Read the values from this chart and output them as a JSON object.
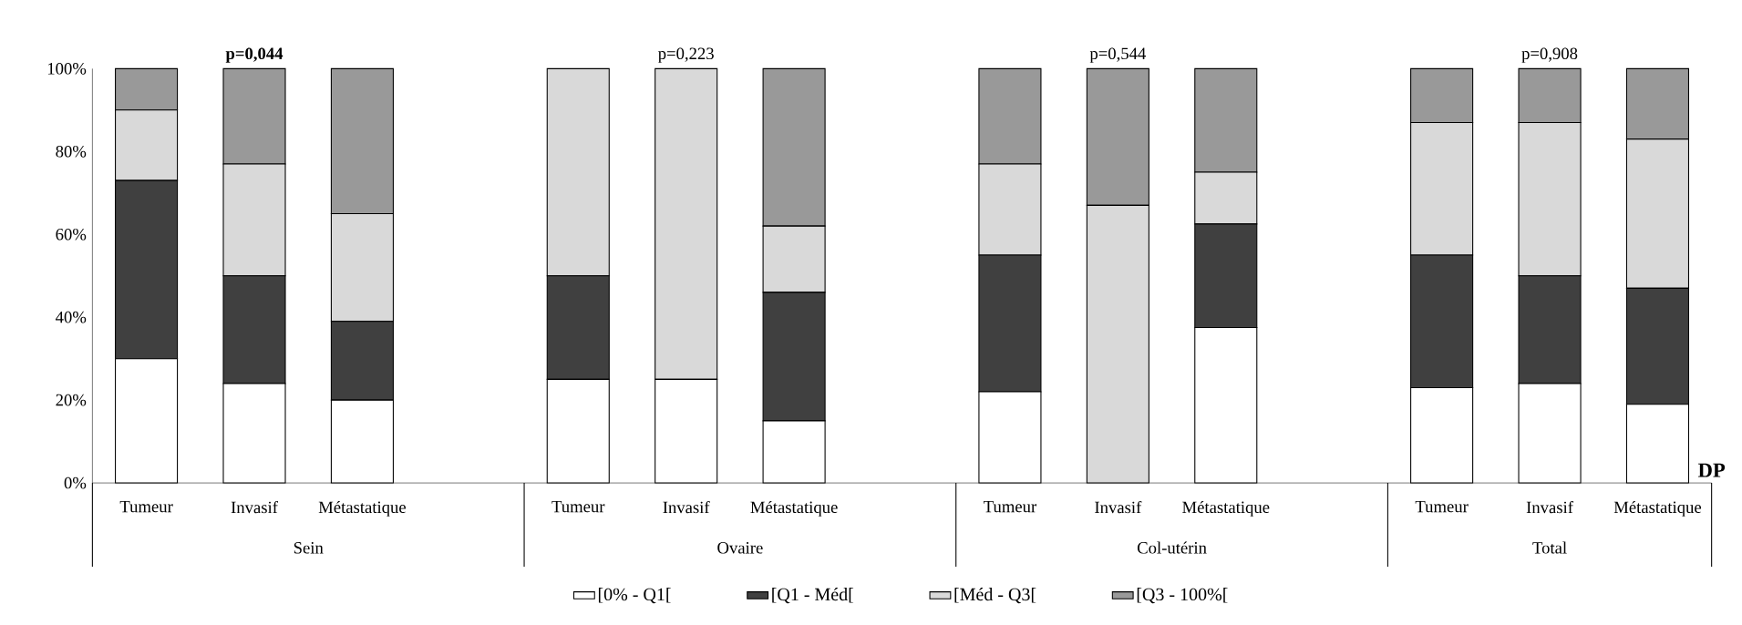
{
  "chart_data": {
    "type": "bar",
    "stacked": true,
    "categories": [
      "Tumeur",
      "Invasif",
      "Métastatique",
      null,
      "Tumeur",
      "Invasif",
      "Métastatique",
      null,
      "Tumeur",
      "Invasif",
      "Métastatique",
      null,
      "Tumeur",
      "Invasif",
      "Métastatique"
    ],
    "series": [
      {
        "name": "[0% - Q1[",
        "color": "#ffffff",
        "values": [
          30,
          24,
          20,
          null,
          25,
          25,
          15,
          null,
          22,
          0,
          37.5,
          null,
          23,
          24,
          19
        ]
      },
      {
        "name": "[Q1 - Méd[",
        "color": "#404040",
        "values": [
          43,
          26,
          19,
          null,
          25,
          0,
          31,
          null,
          33,
          0,
          25,
          null,
          32,
          26,
          28
        ]
      },
      {
        "name": "[Méd - Q3[",
        "color": "#d9d9d9",
        "values": [
          17,
          27,
          26,
          null,
          50,
          75,
          16,
          null,
          22,
          67,
          12.5,
          null,
          32,
          37,
          36
        ]
      },
      {
        "name": "[Q3 - 100%[",
        "color": "#999999",
        "values": [
          10,
          23,
          35,
          null,
          0,
          0,
          38,
          null,
          23,
          33,
          25,
          null,
          13,
          13,
          17
        ]
      }
    ],
    "ylim": [
      0,
      100
    ],
    "yticks": [
      {
        "value": 0,
        "label": "0%"
      },
      {
        "value": 20,
        "label": "20%"
      },
      {
        "value": 40,
        "label": "40%"
      },
      {
        "value": 60,
        "label": "60%"
      },
      {
        "value": 80,
        "label": "80%"
      },
      {
        "value": 100,
        "label": "100%"
      }
    ],
    "legend": "bottom",
    "annotations": [
      "**p=0,044**",
      "p=0,223",
      "p=0,544",
      "p=0,908",
      "Sein",
      "Ovaire",
      "Col-utérin",
      "Total",
      "**DP**"
    ]
  }
}
